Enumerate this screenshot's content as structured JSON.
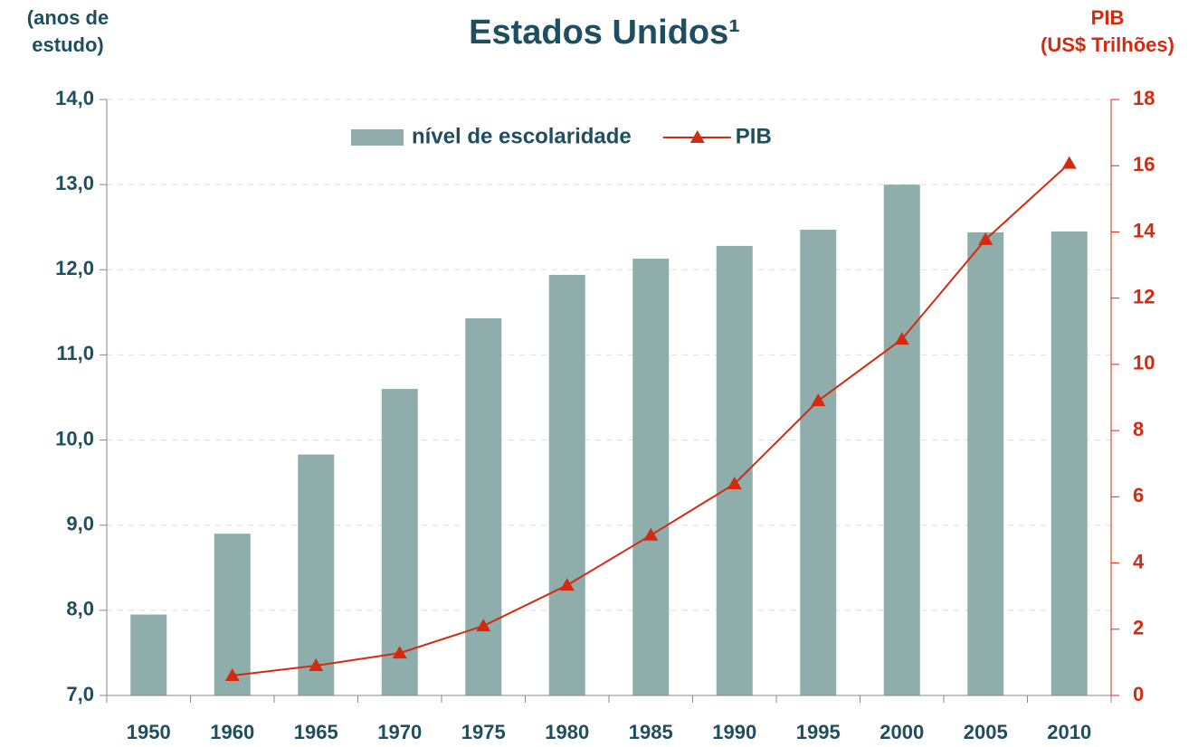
{
  "chart_data": {
    "type": "bar_line",
    "title": "Estados Unidos¹",
    "y_label": "(anos de\nestudo)",
    "y2_label": "PIB\n(US$ Trilhões)",
    "categories": [
      "1950",
      "1960",
      "1965",
      "1970",
      "1975",
      "1980",
      "1985",
      "1990",
      "1995",
      "2000",
      "2005",
      "2010"
    ],
    "series": [
      {
        "name": "nível de escolaridade",
        "type": "bar",
        "color": "#8fadab",
        "values": [
          7.95,
          8.9,
          9.83,
          10.6,
          11.43,
          11.94,
          12.13,
          12.28,
          12.47,
          13.0,
          12.44,
          12.45
        ]
      },
      {
        "name": "PIB",
        "type": "line",
        "axis": "y2",
        "color": "#d42a10",
        "values": [
          null,
          0.6,
          0.9,
          1.28,
          2.1,
          3.33,
          4.84,
          6.39,
          8.9,
          10.76,
          13.77,
          16.07
        ]
      }
    ],
    "ylim": [
      7,
      14
    ],
    "yticks": [
      {
        "value": 7,
        "label": "7,0"
      },
      {
        "value": 8,
        "label": "8,0"
      },
      {
        "value": 9,
        "label": "9,0"
      },
      {
        "value": 10,
        "label": "10,0"
      },
      {
        "value": 11,
        "label": "11,0"
      },
      {
        "value": 12,
        "label": "12,0"
      },
      {
        "value": 13,
        "label": "13,0"
      },
      {
        "value": 14,
        "label": "14,0"
      }
    ],
    "y2lim": [
      0,
      18
    ],
    "y2ticks": [
      0,
      2,
      4,
      6,
      8,
      10,
      12,
      14,
      16,
      18
    ],
    "grid": true,
    "legend": "top"
  }
}
